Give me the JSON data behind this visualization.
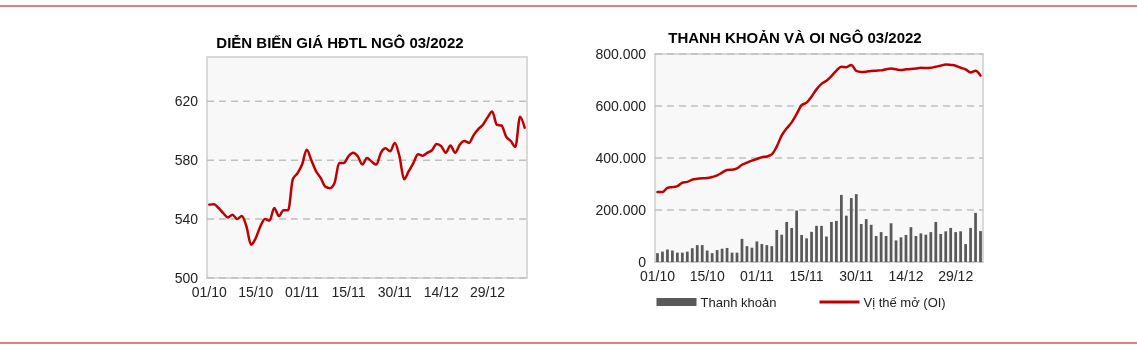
{
  "chart_data": [
    {
      "type": "line",
      "title": "DIỄN BIẾN GIÁ HĐTL NGÔ 03/2022",
      "categories": [
        "01/10",
        null,
        null,
        null,
        null,
        null,
        null,
        null,
        null,
        null,
        "15/10",
        null,
        null,
        null,
        null,
        null,
        null,
        null,
        null,
        null,
        "01/11",
        null,
        null,
        null,
        null,
        null,
        null,
        null,
        null,
        null,
        "15/11",
        null,
        null,
        null,
        null,
        null,
        null,
        null,
        null,
        null,
        "30/11",
        null,
        null,
        null,
        null,
        null,
        null,
        null,
        null,
        null,
        "14/12",
        null,
        null,
        null,
        null,
        null,
        null,
        null,
        null,
        null,
        "29/12",
        null,
        null,
        null,
        null,
        null,
        null,
        null,
        null
      ],
      "series": [
        {
          "color": "#c00000",
          "values": [
            549.8,
            550,
            547.5,
            544,
            541,
            543,
            540,
            542,
            535,
            522.6,
            527,
            535,
            540,
            539,
            547.5,
            542,
            546,
            546,
            567,
            571,
            577,
            587,
            580,
            572.5,
            568,
            562,
            561,
            564.5,
            578,
            578,
            582.6,
            585,
            582.6,
            577,
            581.5,
            579,
            577,
            585,
            588,
            586,
            591.7,
            582.6,
            567,
            572.5,
            578,
            584,
            583,
            585,
            586.7,
            591,
            589.5,
            585,
            590,
            585,
            590.5,
            593,
            591.7,
            597,
            601,
            604,
            609,
            613,
            604,
            603.5,
            596,
            593,
            589,
            609.4,
            602
          ]
        }
      ],
      "ylim": [
        500,
        650
      ],
      "yticks": [
        500,
        540,
        580,
        620
      ],
      "grid": "y",
      "marker": "none",
      "line_style": "solid",
      "legend": false
    },
    {
      "type": "bar",
      "title": "THANH KHOẢN VÀ OI NGÔ 03/2022",
      "categories": [
        "01/10",
        null,
        null,
        null,
        null,
        null,
        null,
        null,
        null,
        null,
        "15/10",
        null,
        null,
        null,
        null,
        null,
        null,
        null,
        null,
        null,
        "01/11",
        null,
        null,
        null,
        null,
        null,
        null,
        null,
        null,
        null,
        "15/11",
        null,
        null,
        null,
        null,
        null,
        null,
        null,
        null,
        null,
        "30/11",
        null,
        null,
        null,
        null,
        null,
        null,
        null,
        null,
        null,
        "14/12",
        null,
        null,
        null,
        null,
        null,
        null,
        null,
        null,
        null,
        "29/12",
        null,
        null,
        null,
        null,
        null
      ],
      "series": [
        {
          "name": "Thanh khoản",
          "color": "#595959",
          "values": [
            34000,
            40000,
            48000,
            44000,
            36000,
            36000,
            40000,
            53000,
            65000,
            65000,
            44000,
            34000,
            46000,
            51000,
            54000,
            36000,
            36000,
            89000,
            61000,
            55000,
            79000,
            69000,
            65000,
            61000,
            123000,
            105000,
            154000,
            131000,
            198000,
            104000,
            91000,
            116000,
            139000,
            139000,
            98000,
            154000,
            158000,
            258000,
            178000,
            246000,
            261000,
            146000,
            165000,
            143000,
            100000,
            115000,
            100000,
            149000,
            83000,
            95000,
            104000,
            134000,
            100000,
            110000,
            105000,
            115000,
            154000,
            108000,
            118000,
            131000,
            115000,
            118000,
            69000,
            131000,
            189000,
            119000
          ]
        },
        {
          "name": "Vị thế mở (OI)",
          "type": "line",
          "color": "#c00000",
          "values": [
            269000,
            269000,
            285000,
            288000,
            292000,
            305000,
            308000,
            317000,
            320000,
            322000,
            323000,
            327000,
            333000,
            344000,
            354000,
            355000,
            360000,
            374000,
            382000,
            390000,
            396000,
            403000,
            406000,
            414000,
            444000,
            487000,
            514000,
            537000,
            569000,
            603000,
            613000,
            636000,
            664000,
            685000,
            697000,
            715000,
            736000,
            751000,
            749000,
            758000,
            735000,
            731000,
            732000,
            735000,
            736000,
            737000,
            741000,
            744000,
            741000,
            738000,
            741000,
            742000,
            744000,
            747000,
            746000,
            747000,
            751000,
            755000,
            760000,
            758000,
            755000,
            747000,
            741000,
            729000,
            736000,
            717000
          ]
        }
      ],
      "ylim": [
        0,
        800000
      ],
      "yticks": [
        0,
        {
          "value": 200000,
          "label": "200.000"
        },
        {
          "value": 400000,
          "label": "400.000"
        },
        {
          "value": 600000,
          "label": "600.000"
        },
        {
          "value": 800000,
          "label": "800.000"
        }
      ],
      "grid": "y",
      "marker": "none",
      "line_style": "solid",
      "legend": "bottom"
    }
  ]
}
